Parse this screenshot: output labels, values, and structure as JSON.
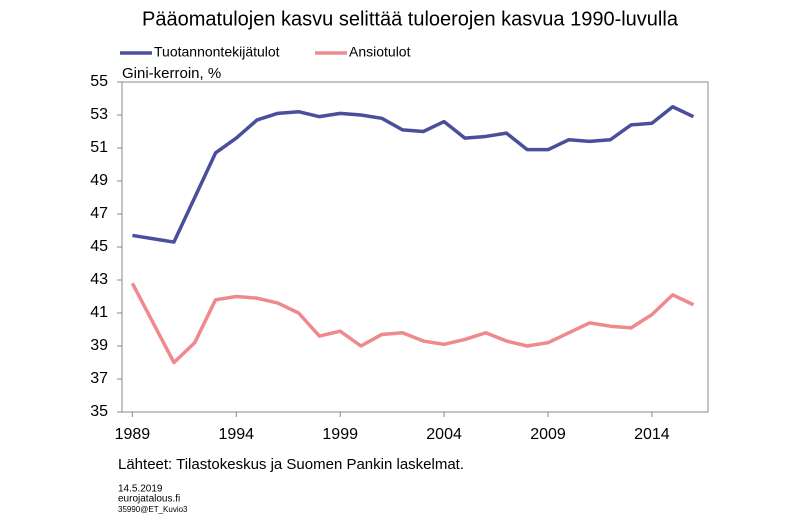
{
  "chart_data": {
    "type": "line",
    "title": "Pääomatulojen kasvu selittää tuloerojen kasvua 1990-luvulla",
    "y_label": "Gini-kerroin, %",
    "source": "Lähteet: Tilastokeskus ja Suomen Pankin laskelmat.",
    "footer": [
      "14.5.2019",
      "eurojatalous.fi",
      "35990@ET_Kuvio3"
    ],
    "x": [
      1989,
      1990,
      1991,
      1992,
      1993,
      1994,
      1995,
      1996,
      1997,
      1998,
      1999,
      2000,
      2001,
      2002,
      2003,
      2004,
      2005,
      2006,
      2007,
      2008,
      2009,
      2010,
      2011,
      2012,
      2013,
      2014,
      2015,
      2016
    ],
    "series": [
      {
        "name": "Tuotannontekijätulot",
        "color": "#4a4f9c",
        "values": [
          45.7,
          45.5,
          45.3,
          48.0,
          50.7,
          51.6,
          52.7,
          53.1,
          53.2,
          52.9,
          53.1,
          53.0,
          52.8,
          52.1,
          52.0,
          52.6,
          51.6,
          51.7,
          51.9,
          50.9,
          50.9,
          51.5,
          51.4,
          51.5,
          52.4,
          52.5,
          53.5,
          52.9
        ]
      },
      {
        "name": "Ansiotulot",
        "color": "#ee8a8d",
        "values": [
          42.8,
          40.4,
          38.0,
          39.2,
          41.8,
          42.0,
          41.9,
          41.6,
          41.0,
          39.6,
          39.9,
          39.0,
          39.7,
          39.8,
          39.3,
          39.1,
          39.4,
          39.8,
          39.3,
          39.0,
          39.2,
          39.8,
          40.4,
          40.2,
          40.1,
          40.9,
          42.1,
          41.5
        ]
      }
    ],
    "xlim": [
      1988.5,
      2016.7
    ],
    "xticks": [
      1989,
      1994,
      1999,
      2004,
      2009,
      2014
    ],
    "ylim": [
      35,
      55
    ],
    "yticks": [
      35,
      37,
      39,
      41,
      43,
      45,
      47,
      49,
      51,
      53,
      55
    ],
    "grid": false,
    "legend": "top-left"
  }
}
